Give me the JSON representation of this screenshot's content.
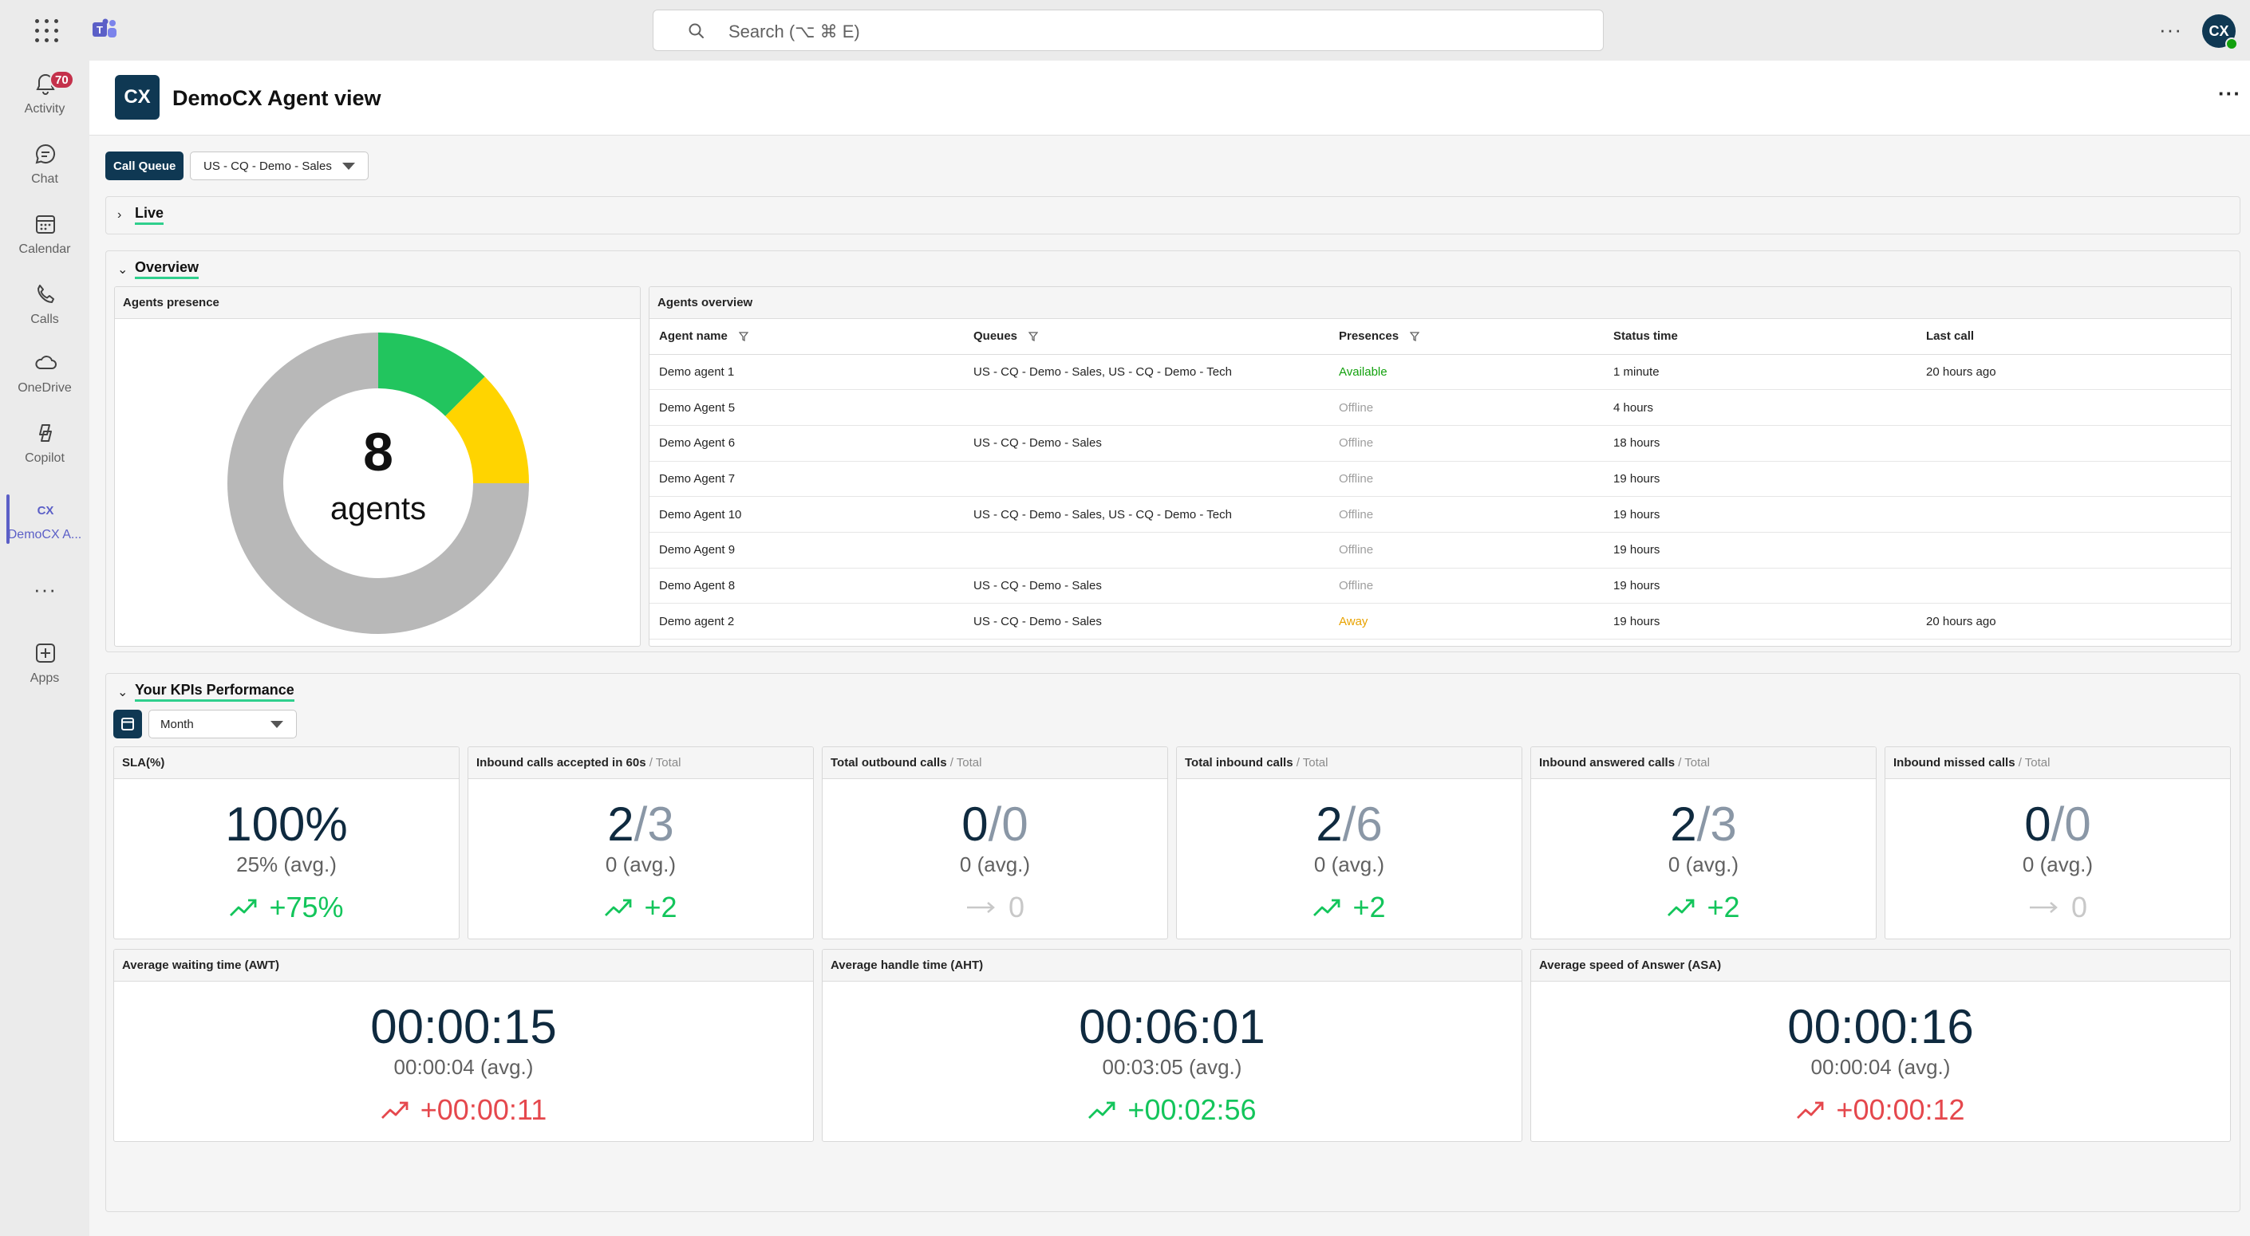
{
  "search": {
    "placeholder": "Search (⌥ ⌘ E)"
  },
  "user": {
    "avatar_initials": "CX",
    "status_color": "#13a10e"
  },
  "rail": {
    "items": [
      {
        "label": "Activity",
        "icon": "bell-icon",
        "badge": "70"
      },
      {
        "label": "Chat",
        "icon": "chat-icon"
      },
      {
        "label": "Calendar",
        "icon": "calendar-icon"
      },
      {
        "label": "Calls",
        "icon": "phone-icon"
      },
      {
        "label": "OneDrive",
        "icon": "cloud-icon"
      },
      {
        "label": "Copilot",
        "icon": "copilot-icon"
      },
      {
        "label": "DemoCX A...",
        "icon": "democx-icon",
        "active": true
      },
      {
        "label": "Apps",
        "icon": "add-app-icon"
      }
    ]
  },
  "app": {
    "logo": "CX",
    "title": "DemoCX Agent view",
    "brand_color": "#0f3853"
  },
  "filter": {
    "label": "Call Queue",
    "selected": "US - CQ - Demo - Sales"
  },
  "sections": {
    "live": "Live",
    "overview": "Overview",
    "kpis": "Your KPIs Performance"
  },
  "presence": {
    "title": "Agents presence",
    "total": "8",
    "unit": "agents",
    "chart_data": {
      "type": "pie",
      "categories": [
        "Available",
        "Away",
        "Offline"
      ],
      "values": [
        1,
        1,
        6
      ],
      "colors": [
        "#22c55e",
        "#ffd400",
        "#b8b8b8"
      ]
    }
  },
  "overview": {
    "title": "Agents overview",
    "columns": [
      "Agent name",
      "Queues",
      "Presences",
      "Status time",
      "Last call"
    ],
    "rows": [
      {
        "name": "Demo agent 1",
        "queues": "US - CQ - Demo - Sales, US - CQ - Demo - Tech",
        "presence": "Available",
        "status_time": "1 minute",
        "last_call": "20 hours ago"
      },
      {
        "name": "Demo Agent 5",
        "queues": "",
        "presence": "Offline",
        "status_time": "4 hours",
        "last_call": ""
      },
      {
        "name": "Demo Agent 6",
        "queues": "US - CQ - Demo - Sales",
        "presence": "Offline",
        "status_time": "18 hours",
        "last_call": ""
      },
      {
        "name": "Demo Agent 7",
        "queues": "",
        "presence": "Offline",
        "status_time": "19 hours",
        "last_call": ""
      },
      {
        "name": "Demo Agent 10",
        "queues": "US - CQ - Demo - Sales, US - CQ - Demo - Tech",
        "presence": "Offline",
        "status_time": "19 hours",
        "last_call": ""
      },
      {
        "name": "Demo Agent 9",
        "queues": "",
        "presence": "Offline",
        "status_time": "19 hours",
        "last_call": ""
      },
      {
        "name": "Demo Agent 8",
        "queues": "US - CQ - Demo - Sales",
        "presence": "Offline",
        "status_time": "19 hours",
        "last_call": ""
      },
      {
        "name": "Demo agent 2",
        "queues": "US - CQ - Demo - Sales",
        "presence": "Away",
        "status_time": "19 hours",
        "last_call": "20 hours ago"
      }
    ],
    "presence_colors": {
      "Available": "#13a10e",
      "Offline": "#9e9e9e",
      "Away": "#e8a200"
    }
  },
  "kpi": {
    "period": "Month",
    "cards": [
      {
        "title": "SLA(%)",
        "sub": "",
        "value": "100%",
        "total": "",
        "avg": "25% (avg.)",
        "delta": "+75%",
        "trend": "up"
      },
      {
        "title": "Inbound calls accepted in 60s",
        "sub": " / Total",
        "value": "2",
        "total": "/3",
        "avg": "0 (avg.)",
        "delta": "+2",
        "trend": "up"
      },
      {
        "title": "Total outbound calls",
        "sub": " / Total",
        "value": "0",
        "total": "/0",
        "avg": "0 (avg.)",
        "delta": "0",
        "trend": "flat"
      },
      {
        "title": "Total inbound calls",
        "sub": " / Total",
        "value": "2",
        "total": "/6",
        "avg": "0 (avg.)",
        "delta": "+2",
        "trend": "up"
      },
      {
        "title": "Inbound answered calls",
        "sub": " / Total",
        "value": "2",
        "total": "/3",
        "avg": "0 (avg.)",
        "delta": "+2",
        "trend": "up"
      },
      {
        "title": "Inbound missed calls",
        "sub": " / Total",
        "value": "0",
        "total": "/0",
        "avg": "0 (avg.)",
        "delta": "0",
        "trend": "flat"
      }
    ],
    "time_cards": [
      {
        "title": "Average waiting time (AWT)",
        "value": "00:00:15",
        "avg": "00:00:04 (avg.)",
        "delta": "+00:00:11",
        "trend": "bad"
      },
      {
        "title": "Average handle time (AHT)",
        "value": "00:06:01",
        "avg": "00:03:05 (avg.)",
        "delta": "+00:02:56",
        "trend": "up"
      },
      {
        "title": "Average speed of Answer (ASA)",
        "value": "00:00:16",
        "avg": "00:00:04 (avg.)",
        "delta": "+00:00:12",
        "trend": "bad"
      }
    ]
  }
}
